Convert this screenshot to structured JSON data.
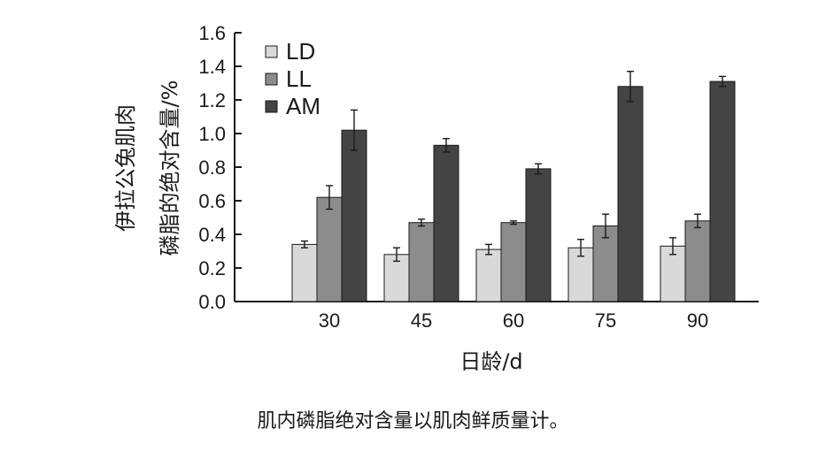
{
  "chart_data": {
    "type": "bar",
    "categories": [
      "30",
      "45",
      "60",
      "75",
      "90"
    ],
    "series": [
      {
        "name": "LD",
        "color": "#d9d9d9",
        "values": [
          0.34,
          0.28,
          0.31,
          0.32,
          0.33
        ],
        "errors": [
          0.02,
          0.04,
          0.03,
          0.05,
          0.05
        ]
      },
      {
        "name": "LL",
        "color": "#8c8c8c",
        "values": [
          0.62,
          0.47,
          0.47,
          0.45,
          0.48
        ],
        "errors": [
          0.07,
          0.02,
          0.01,
          0.07,
          0.04
        ]
      },
      {
        "name": "AM",
        "color": "#444444",
        "values": [
          1.02,
          0.93,
          0.79,
          1.28,
          1.31
        ],
        "errors": [
          0.12,
          0.04,
          0.03,
          0.09,
          0.03
        ]
      }
    ],
    "ylabel_line1": "伊拉公兔肌肉",
    "ylabel_line2": "磷脂的绝对含量/%",
    "xlabel": "日龄/d",
    "ylim": [
      0,
      1.6
    ],
    "yticks": [
      "0.0",
      "0.2",
      "0.4",
      "0.6",
      "0.8",
      "1.0",
      "1.2",
      "1.4",
      "1.6"
    ],
    "legend_position": "top-left",
    "grid": false
  },
  "caption": "肌内磷脂绝对含量以肌肉鲜质量计。"
}
